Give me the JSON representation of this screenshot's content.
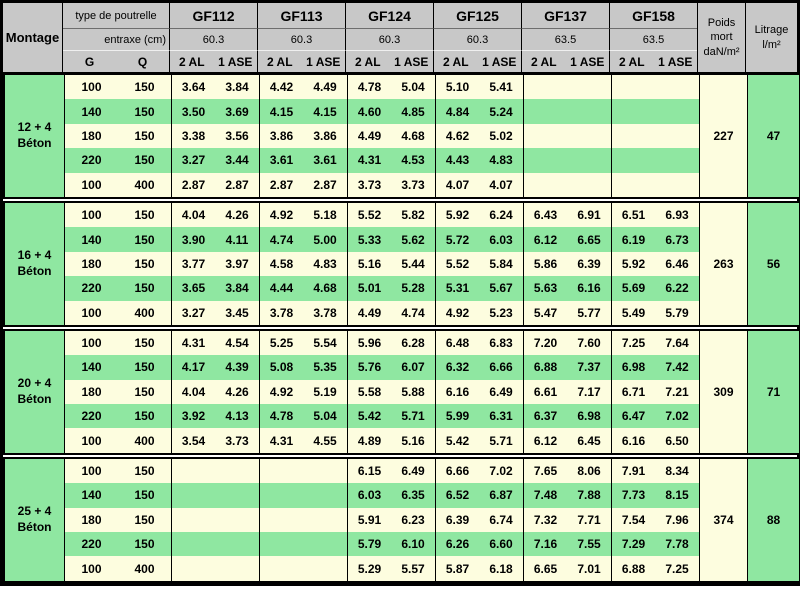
{
  "colors": {
    "header_bg": "#c8c8c8",
    "row_cream": "#fdfddf",
    "row_green": "#8fe7a1",
    "border": "#000000"
  },
  "header": {
    "montage": "Montage",
    "type_label": "type de poutrelle",
    "entraxe_label": "entraxe (cm)",
    "g": "G",
    "q": "Q",
    "sub": [
      "2 AL",
      "1 ASE"
    ],
    "beams": [
      {
        "name": "GF112",
        "entraxe": "60.3"
      },
      {
        "name": "GF113",
        "entraxe": "60.3"
      },
      {
        "name": "GF124",
        "entraxe": "60.3"
      },
      {
        "name": "GF125",
        "entraxe": "60.3"
      },
      {
        "name": "GF137",
        "entraxe": "63.5"
      },
      {
        "name": "GF158",
        "entraxe": "63.5"
      }
    ],
    "poids_lines": [
      "Poids",
      "mort",
      "daN/m²"
    ],
    "litrage_lines": [
      "Litrage",
      "l/m²"
    ]
  },
  "groups": [
    {
      "label_line1": "12 + 4",
      "label_line2": "Béton",
      "poids": "227",
      "litrage": "47",
      "rows": [
        {
          "g": "100",
          "q": "150",
          "values": [
            "3.64",
            "3.84",
            "4.42",
            "4.49",
            "4.78",
            "5.04",
            "5.10",
            "5.41",
            "",
            "",
            "",
            ""
          ]
        },
        {
          "g": "140",
          "q": "150",
          "values": [
            "3.50",
            "3.69",
            "4.15",
            "4.15",
            "4.60",
            "4.85",
            "4.84",
            "5.24",
            "",
            "",
            "",
            ""
          ]
        },
        {
          "g": "180",
          "q": "150",
          "values": [
            "3.38",
            "3.56",
            "3.86",
            "3.86",
            "4.49",
            "4.68",
            "4.62",
            "5.02",
            "",
            "",
            "",
            ""
          ]
        },
        {
          "g": "220",
          "q": "150",
          "values": [
            "3.27",
            "3.44",
            "3.61",
            "3.61",
            "4.31",
            "4.53",
            "4.43",
            "4.83",
            "",
            "",
            "",
            ""
          ]
        },
        {
          "g": "100",
          "q": "400",
          "values": [
            "2.87",
            "2.87",
            "2.87",
            "2.87",
            "3.73",
            "3.73",
            "4.07",
            "4.07",
            "",
            "",
            "",
            ""
          ]
        }
      ]
    },
    {
      "label_line1": "16 + 4",
      "label_line2": "Béton",
      "poids": "263",
      "litrage": "56",
      "rows": [
        {
          "g": "100",
          "q": "150",
          "values": [
            "4.04",
            "4.26",
            "4.92",
            "5.18",
            "5.52",
            "5.82",
            "5.92",
            "6.24",
            "6.43",
            "6.91",
            "6.51",
            "6.93"
          ]
        },
        {
          "g": "140",
          "q": "150",
          "values": [
            "3.90",
            "4.11",
            "4.74",
            "5.00",
            "5.33",
            "5.62",
            "5.72",
            "6.03",
            "6.12",
            "6.65",
            "6.19",
            "6.73"
          ]
        },
        {
          "g": "180",
          "q": "150",
          "values": [
            "3.77",
            "3.97",
            "4.58",
            "4.83",
            "5.16",
            "5.44",
            "5.52",
            "5.84",
            "5.86",
            "6.39",
            "5.92",
            "6.46"
          ]
        },
        {
          "g": "220",
          "q": "150",
          "values": [
            "3.65",
            "3.84",
            "4.44",
            "4.68",
            "5.01",
            "5.28",
            "5.31",
            "5.67",
            "5.63",
            "6.16",
            "5.69",
            "6.22"
          ]
        },
        {
          "g": "100",
          "q": "400",
          "values": [
            "3.27",
            "3.45",
            "3.78",
            "3.78",
            "4.49",
            "4.74",
            "4.92",
            "5.23",
            "5.47",
            "5.77",
            "5.49",
            "5.79"
          ]
        }
      ]
    },
    {
      "label_line1": "20 + 4",
      "label_line2": "Béton",
      "poids": "309",
      "litrage": "71",
      "rows": [
        {
          "g": "100",
          "q": "150",
          "values": [
            "4.31",
            "4.54",
            "5.25",
            "5.54",
            "5.96",
            "6.28",
            "6.48",
            "6.83",
            "7.20",
            "7.60",
            "7.25",
            "7.64"
          ]
        },
        {
          "g": "140",
          "q": "150",
          "values": [
            "4.17",
            "4.39",
            "5.08",
            "5.35",
            "5.76",
            "6.07",
            "6.32",
            "6.66",
            "6.88",
            "7.37",
            "6.98",
            "7.42"
          ]
        },
        {
          "g": "180",
          "q": "150",
          "values": [
            "4.04",
            "4.26",
            "4.92",
            "5.19",
            "5.58",
            "5.88",
            "6.16",
            "6.49",
            "6.61",
            "7.17",
            "6.71",
            "7.21"
          ]
        },
        {
          "g": "220",
          "q": "150",
          "values": [
            "3.92",
            "4.13",
            "4.78",
            "5.04",
            "5.42",
            "5.71",
            "5.99",
            "6.31",
            "6.37",
            "6.98",
            "6.47",
            "7.02"
          ]
        },
        {
          "g": "100",
          "q": "400",
          "values": [
            "3.54",
            "3.73",
            "4.31",
            "4.55",
            "4.89",
            "5.16",
            "5.42",
            "5.71",
            "6.12",
            "6.45",
            "6.16",
            "6.50"
          ]
        }
      ]
    },
    {
      "label_line1": "25 + 4",
      "label_line2": "Béton",
      "poids": "374",
      "litrage": "88",
      "rows": [
        {
          "g": "100",
          "q": "150",
          "values": [
            "",
            "",
            "",
            "",
            "6.15",
            "6.49",
            "6.66",
            "7.02",
            "7.65",
            "8.06",
            "7.91",
            "8.34"
          ]
        },
        {
          "g": "140",
          "q": "150",
          "values": [
            "",
            "",
            "",
            "",
            "6.03",
            "6.35",
            "6.52",
            "6.87",
            "7.48",
            "7.88",
            "7.73",
            "8.15"
          ]
        },
        {
          "g": "180",
          "q": "150",
          "values": [
            "",
            "",
            "",
            "",
            "5.91",
            "6.23",
            "6.39",
            "6.74",
            "7.32",
            "7.71",
            "7.54",
            "7.96"
          ]
        },
        {
          "g": "220",
          "q": "150",
          "values": [
            "",
            "",
            "",
            "",
            "5.79",
            "6.10",
            "6.26",
            "6.60",
            "7.16",
            "7.55",
            "7.29",
            "7.78"
          ]
        },
        {
          "g": "100",
          "q": "400",
          "values": [
            "",
            "",
            "",
            "",
            "5.29",
            "5.57",
            "5.87",
            "6.18",
            "6.65",
            "7.01",
            "6.88",
            "7.25"
          ]
        }
      ]
    }
  ]
}
